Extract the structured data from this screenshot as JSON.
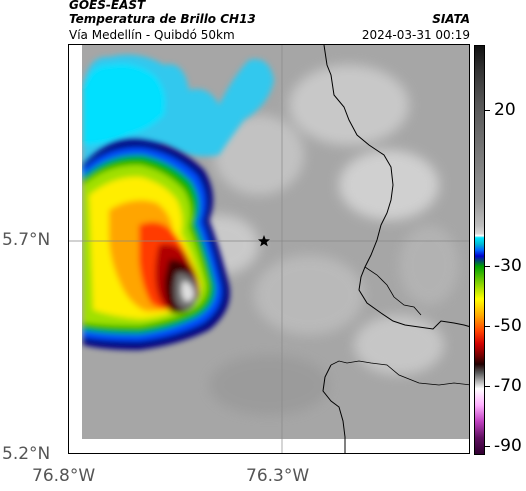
{
  "header": {
    "satellite": "GOES-EAST",
    "product": "Temperatura de Brillo CH13",
    "region": "Vía Medellín - Quibdó 50km",
    "source": "SIATA",
    "datetime": "2024-03-31 00:19"
  },
  "map": {
    "lat_ticks": [
      "5.7°N",
      "5.2°N"
    ],
    "lon_ticks": [
      "76.8°W",
      "76.3°W"
    ],
    "marker": "star"
  },
  "colorbar": {
    "labels": [
      "20",
      "-30",
      "-50",
      "-70",
      "-90"
    ]
  }
}
